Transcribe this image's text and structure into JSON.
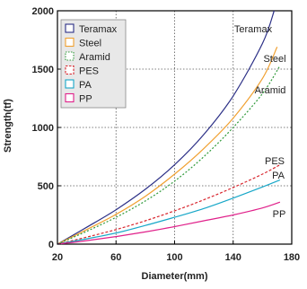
{
  "chart_data": {
    "type": "line",
    "xlabel": "Diameter(mm)",
    "ylabel": "Strength(tf)",
    "xlim": [
      20,
      180
    ],
    "ylim": [
      0,
      2000
    ],
    "xticks": [
      20,
      60,
      100,
      140,
      180
    ],
    "yticks": [
      0,
      500,
      1000,
      1500,
      2000
    ],
    "grid": true,
    "legend_position": "top-left",
    "series": [
      {
        "name": "Teramax",
        "color": "#2b2f86",
        "dash": "solid",
        "x": [
          20,
          40,
          60,
          80,
          100,
          120,
          140,
          160,
          168
        ],
        "y": [
          0,
          145,
          295,
          470,
          680,
          940,
          1270,
          1720,
          2000
        ]
      },
      {
        "name": "Steel",
        "color": "#f0a030",
        "dash": "solid",
        "x": [
          20,
          40,
          60,
          80,
          100,
          120,
          140,
          160,
          170
        ],
        "y": [
          0,
          125,
          255,
          410,
          600,
          820,
          1080,
          1420,
          1690
        ]
      },
      {
        "name": "Aramid",
        "color": "#2f9a3a",
        "dash": "dotted",
        "x": [
          20,
          40,
          60,
          80,
          100,
          120,
          140,
          160,
          172
        ],
        "y": [
          0,
          110,
          230,
          370,
          540,
          750,
          1000,
          1290,
          1530
        ]
      },
      {
        "name": "PES",
        "color": "#d8262e",
        "dash": "dashed",
        "x": [
          20,
          40,
          60,
          80,
          100,
          120,
          140,
          160,
          172
        ],
        "y": [
          0,
          60,
          125,
          200,
          285,
          380,
          485,
          600,
          680
        ]
      },
      {
        "name": "PA",
        "color": "#17a7c8",
        "dash": "solid",
        "x": [
          20,
          40,
          60,
          80,
          100,
          120,
          140,
          160,
          172
        ],
        "y": [
          0,
          45,
          95,
          160,
          230,
          305,
          395,
          490,
          550
        ]
      },
      {
        "name": "PP",
        "color": "#e0208a",
        "dash": "solid",
        "x": [
          20,
          40,
          60,
          80,
          100,
          120,
          140,
          160,
          172
        ],
        "y": [
          0,
          30,
          65,
          105,
          150,
          200,
          250,
          310,
          360
        ]
      }
    ],
    "curve_labels": [
      {
        "series": "Teramax",
        "text": "Teramax"
      },
      {
        "series": "Steel",
        "text": "Steel"
      },
      {
        "series": "Aramid",
        "text": "Aramid"
      },
      {
        "series": "PES",
        "text": "PES"
      },
      {
        "series": "PA",
        "text": "PA"
      },
      {
        "series": "PP",
        "text": "PP"
      }
    ]
  }
}
